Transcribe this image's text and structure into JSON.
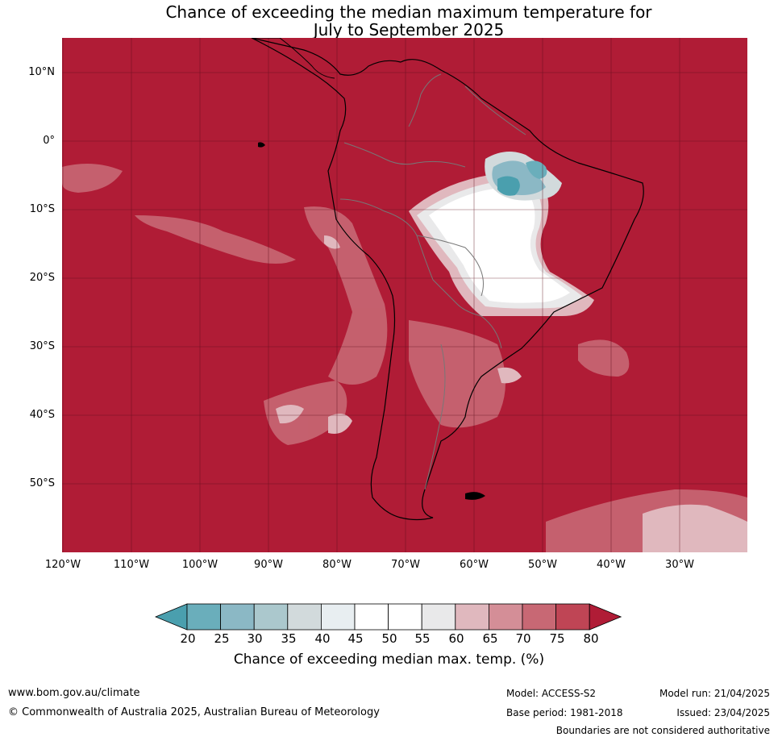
{
  "title_line1": "Chance of exceeding the median maximum temperature for",
  "title_line2": "July to September 2025",
  "lat_ticks": [
    "10°N",
    "0°",
    "10°S",
    "20°S",
    "30°S",
    "40°S",
    "50°S"
  ],
  "lon_ticks": [
    "120°W",
    "110°W",
    "100°W",
    "90°W",
    "80°W",
    "70°W",
    "60°W",
    "50°W",
    "40°W",
    "30°W"
  ],
  "colorbar": {
    "labels": [
      "20",
      "25",
      "30",
      "35",
      "40",
      "45",
      "50",
      "55",
      "60",
      "65",
      "70",
      "75",
      "80"
    ],
    "colors": [
      "#4a9fae",
      "#6aaebb",
      "#8bb8c5",
      "#abc8cd",
      "#d2dadc",
      "#e8eef1",
      "#ffffff",
      "#ffffff",
      "#e9e9ea",
      "#e0b8be",
      "#d48e97",
      "#c86874",
      "#bf4555",
      "#b01c36"
    ],
    "title": "Chance of exceeding median max. temp. (%)"
  },
  "footer": {
    "url": "www.bom.gov.au/climate",
    "copyright": "© Commonwealth of Australia 2025, Australian Bureau of Meteorology",
    "model": "Model: ACCESS-S2",
    "base_period": "Base period: 1981-2018",
    "model_run": "Model run: 21/04/2025",
    "issued": "Issued: 23/04/2025",
    "boundaries": "Boundaries are not considered authoritative"
  }
}
